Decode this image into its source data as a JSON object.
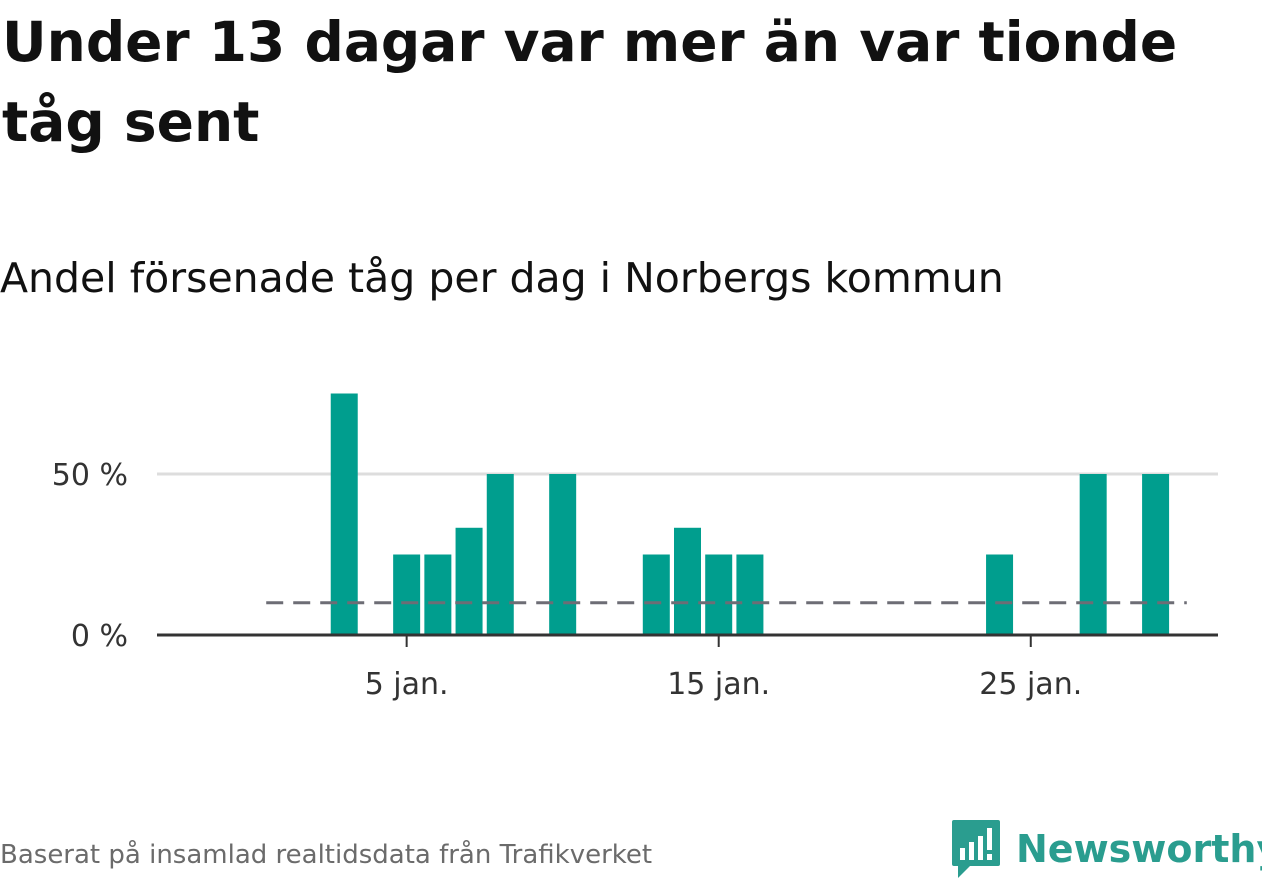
{
  "headline": "Under 13 dagar var mer än var tionde tåg sent",
  "subtitle": "Andel försenade tåg per dag i Norbergs kommun",
  "footer": {
    "source": "Baserat på insamlad realtidsdata från Trafikverket",
    "brand": "Newsworthy",
    "brand_logo_icon": "newsworthy-logo-icon"
  },
  "colors": {
    "bar": "#009e8e",
    "reference_line": "#6d6d75",
    "gridline": "#dddddd",
    "axis": "#333333",
    "brand": "#2a9d8f"
  },
  "chart_data": {
    "type": "bar",
    "x_unit": "day of January",
    "x": [
      3,
      5,
      6,
      7,
      8,
      10,
      13,
      14,
      15,
      16,
      24,
      27,
      29
    ],
    "values": [
      75,
      25,
      25,
      33.3,
      50,
      50,
      25,
      33.3,
      25,
      25,
      25,
      50,
      50
    ],
    "xlim": [
      -3,
      31
    ],
    "ylim": [
      0,
      100
    ],
    "xticks": [
      {
        "value": 5,
        "label": "5 jan."
      },
      {
        "value": 15,
        "label": "15 jan."
      },
      {
        "value": 25,
        "label": "25 jan."
      }
    ],
    "yticks": [
      {
        "value": 0,
        "label": "0 %"
      },
      {
        "value": 50,
        "label": "50 %"
      }
    ],
    "reference_line": {
      "value": 10,
      "style": "dashed",
      "x_from": 0.5,
      "x_to": 30
    },
    "grid": true,
    "xlabel": "",
    "ylabel": ""
  }
}
